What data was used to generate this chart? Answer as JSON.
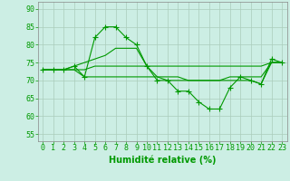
{
  "background_color": "#cceee4",
  "grid_color": "#aaccbb",
  "line_color": "#009900",
  "xlabel": "Humidité relative (%)",
  "ylabel_ticks": [
    55,
    60,
    65,
    70,
    75,
    80,
    85,
    90
  ],
  "xlim": [
    -0.5,
    23.5
  ],
  "ylim": [
    53,
    92
  ],
  "xticks": [
    0,
    1,
    2,
    3,
    4,
    5,
    6,
    7,
    8,
    9,
    10,
    11,
    12,
    13,
    14,
    15,
    16,
    17,
    18,
    19,
    20,
    21,
    22,
    23
  ],
  "line1": [
    73,
    73,
    73,
    74,
    71,
    82,
    85,
    85,
    82,
    80,
    74,
    70,
    70,
    67,
    67,
    64,
    62,
    62,
    68,
    71,
    70,
    69,
    76,
    75
  ],
  "line2": [
    73,
    73,
    73,
    73,
    73,
    74,
    74,
    74,
    74,
    74,
    74,
    74,
    74,
    74,
    74,
    74,
    74,
    74,
    74,
    74,
    74,
    74,
    75,
    75
  ],
  "line3": [
    73,
    73,
    73,
    73,
    71,
    71,
    71,
    71,
    71,
    71,
    71,
    71,
    71,
    71,
    70,
    70,
    70,
    70,
    70,
    70,
    70,
    69,
    75,
    75
  ],
  "line4": [
    73,
    73,
    73,
    74,
    75,
    76,
    77,
    79,
    79,
    79,
    74,
    71,
    70,
    70,
    70,
    70,
    70,
    70,
    71,
    71,
    71,
    71,
    75,
    75
  ],
  "tick_fontsize": 6,
  "xlabel_fontsize": 7
}
